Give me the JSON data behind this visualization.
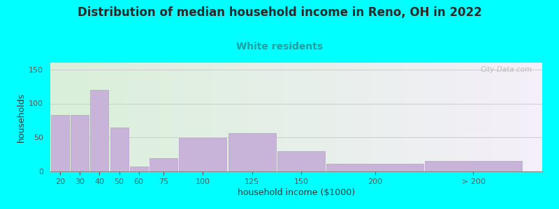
{
  "title": "Distribution of median household income in Reno, OH in 2022",
  "subtitle": "White residents",
  "xlabel": "household income ($1000)",
  "ylabel": "households",
  "background_outer": "#00FFFF",
  "background_inner_left": "#d8f0d8",
  "background_inner_right": "#f0eef8",
  "bar_color": "#c8b4d8",
  "bar_edge_color": "#c0a8d0",
  "title_fontsize": 12,
  "subtitle_fontsize": 10,
  "subtitle_color": "#20a0a0",
  "xlabel_fontsize": 9,
  "ylabel_fontsize": 9,
  "tick_labels": [
    "20",
    "30",
    "40",
    "50",
    "60",
    "75",
    "100",
    "125",
    "150",
    "200",
    "> 200"
  ],
  "bar_heights": [
    83,
    83,
    120,
    65,
    7,
    19,
    49,
    56,
    30,
    11,
    15
  ],
  "bar_widths": [
    10,
    10,
    10,
    10,
    10,
    15,
    25,
    25,
    25,
    50,
    50
  ],
  "bar_lefts": [
    15,
    25,
    35,
    45,
    55,
    65,
    80,
    105,
    130,
    155,
    205
  ],
  "xlim": [
    15,
    265
  ],
  "ylim": [
    0,
    160
  ],
  "yticks": [
    0,
    50,
    100,
    150
  ],
  "watermark": "City-Data.com",
  "grid_color": "#cccccc",
  "grid_linewidth": 0.7
}
